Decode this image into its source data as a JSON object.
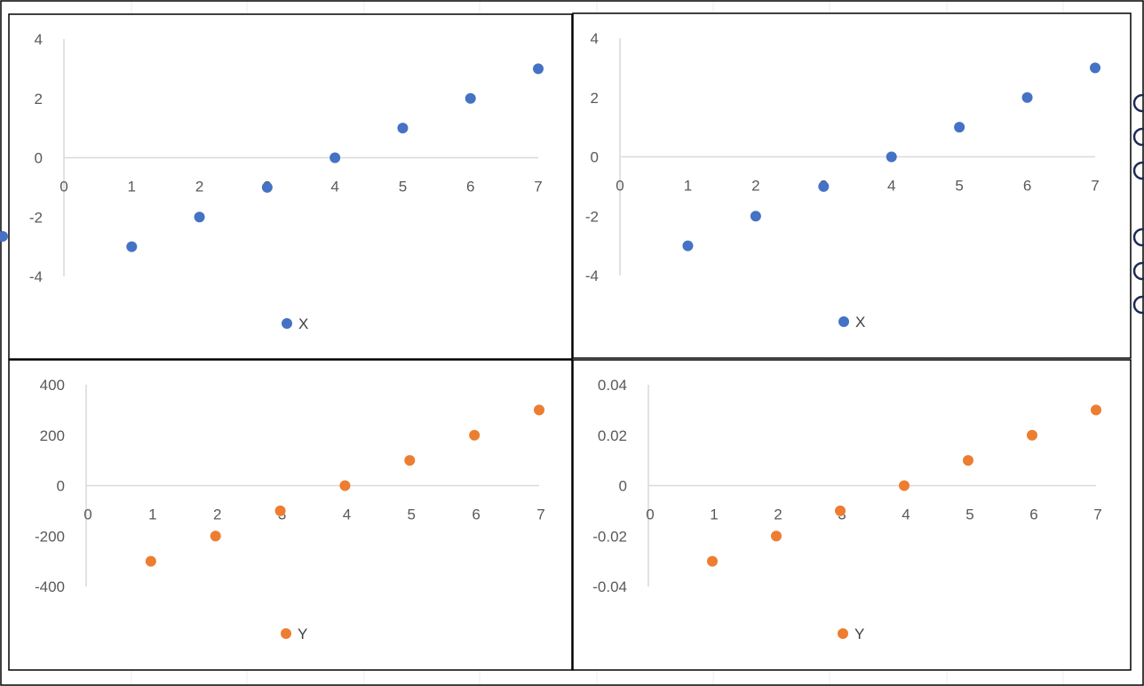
{
  "colors": {
    "series_x": "#4472C4",
    "series_y": "#ED7D31",
    "axis": "#D9D9D9",
    "text": "#595959",
    "border": "#000000"
  },
  "chart_data": [
    {
      "type": "scatter",
      "title": "",
      "xlabel": "",
      "ylabel": "",
      "xlim": [
        0,
        7
      ],
      "ylim": [
        -4,
        4
      ],
      "x_ticks": [
        "0",
        "1",
        "2",
        "3",
        "4",
        "5",
        "6",
        "7"
      ],
      "y_ticks": [
        "4",
        "2",
        "0",
        "-2",
        "-4"
      ],
      "series": [
        {
          "name": "X",
          "x": [
            1,
            2,
            3,
            4,
            5,
            6,
            7
          ],
          "y": [
            -3,
            -2,
            -1,
            0,
            1,
            2,
            3
          ]
        }
      ],
      "legend": "bottom"
    },
    {
      "type": "scatter",
      "title": "",
      "xlabel": "",
      "ylabel": "",
      "xlim": [
        0,
        7
      ],
      "ylim": [
        -4,
        4
      ],
      "x_ticks": [
        "0",
        "1",
        "2",
        "3",
        "4",
        "5",
        "6",
        "7"
      ],
      "y_ticks": [
        "4",
        "2",
        "0",
        "-2",
        "-4"
      ],
      "series": [
        {
          "name": "X",
          "x": [
            1,
            2,
            3,
            4,
            5,
            6,
            7
          ],
          "y": [
            -3,
            -2,
            -1,
            0,
            1,
            2,
            3
          ]
        }
      ],
      "legend": "bottom"
    },
    {
      "type": "scatter",
      "title": "",
      "xlabel": "",
      "ylabel": "",
      "xlim": [
        0,
        7
      ],
      "ylim": [
        -400,
        400
      ],
      "x_ticks": [
        "0",
        "1",
        "2",
        "3",
        "4",
        "5",
        "6",
        "7"
      ],
      "y_ticks": [
        "400",
        "200",
        "0",
        "-200",
        "-400"
      ],
      "series": [
        {
          "name": "Y",
          "x": [
            1,
            2,
            3,
            4,
            5,
            6,
            7
          ],
          "y": [
            -300,
            -200,
            -100,
            0,
            100,
            200,
            300
          ]
        }
      ],
      "legend": "bottom"
    },
    {
      "type": "scatter",
      "title": "",
      "xlabel": "",
      "ylabel": "",
      "xlim": [
        0,
        7
      ],
      "ylim": [
        -0.04,
        0.04
      ],
      "x_ticks": [
        "0",
        "1",
        "2",
        "3",
        "4",
        "5",
        "6",
        "7"
      ],
      "y_ticks": [
        "0.04",
        "0.02",
        "0",
        "-0.02",
        "-0.04"
      ],
      "series": [
        {
          "name": "Y",
          "x": [
            1,
            2,
            3,
            4,
            5,
            6,
            7
          ],
          "y": [
            -0.03,
            -0.02,
            -0.01,
            0,
            0.01,
            0.02,
            0.03
          ]
        }
      ],
      "legend": "bottom"
    }
  ]
}
